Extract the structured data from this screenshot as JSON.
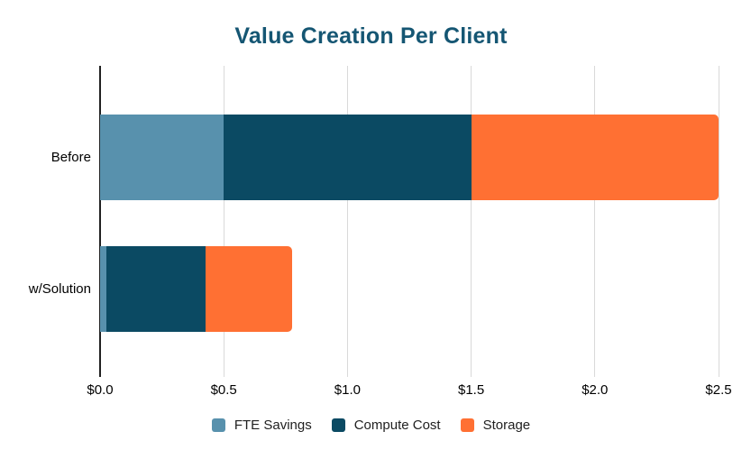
{
  "chart_data": {
    "type": "bar",
    "orientation": "horizontal",
    "stacked": true,
    "title": "Value Creation Per Client",
    "categories": [
      "Before",
      "w/Solution"
    ],
    "series": [
      {
        "name": "FTE Savings",
        "color": "#5891ad",
        "values": [
          0.5,
          0.025
        ]
      },
      {
        "name": "Compute Cost",
        "color": "#0b4a63",
        "values": [
          1.0,
          0.4
        ]
      },
      {
        "name": "Storage",
        "color": "#ff7033",
        "values": [
          1.0,
          0.35
        ]
      }
    ],
    "stacked_totals": [
      2.5,
      0.775
    ],
    "xlabel": "",
    "ylabel": "",
    "xlim": [
      0,
      2.5
    ],
    "x_ticks": [
      {
        "value": 0.0,
        "label": "$0.0"
      },
      {
        "value": 0.5,
        "label": "$0.5"
      },
      {
        "value": 1.0,
        "label": "$1.0"
      },
      {
        "value": 1.5,
        "label": "$1.5"
      },
      {
        "value": 2.0,
        "label": "$2.0"
      },
      {
        "value": 2.5,
        "label": "$2.5"
      }
    ],
    "grid": true,
    "legend_position": "bottom"
  },
  "colors": {
    "title": "#155673",
    "axis_line": "#212121",
    "gridline": "#d9d9d9",
    "tick_label": "#000000",
    "category_label": "#000000",
    "legend_label": "#212121",
    "background": "#ffffff"
  }
}
